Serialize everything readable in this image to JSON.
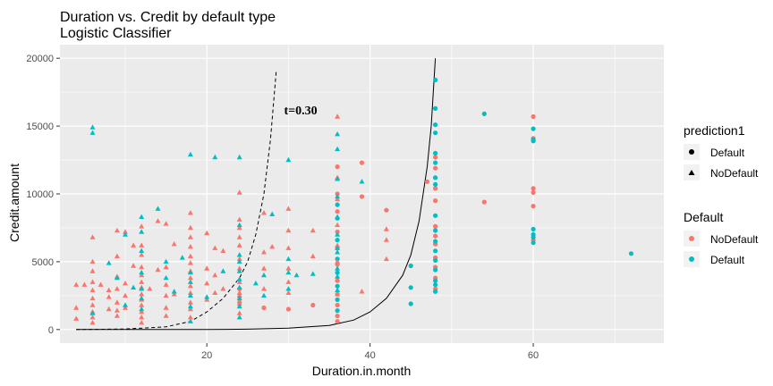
{
  "chart_data": {
    "type": "scatter",
    "title": "Duration vs. Credit by default type",
    "subtitle": "Logistic Classifier",
    "xlabel": "Duration.in.month",
    "ylabel": "Credit.amount",
    "xlim": [
      2,
      76
    ],
    "ylim": [
      -1000,
      21000
    ],
    "x_ticks": [
      20,
      40,
      60
    ],
    "y_ticks": [
      0,
      5000,
      10000,
      15000,
      20000
    ],
    "x_tick_labels": [
      "20",
      "40",
      "60"
    ],
    "y_tick_labels": [
      "0",
      "5000",
      "10000",
      "15000",
      "20000"
    ],
    "grid": true,
    "colors": {
      "NoDefault": "#F8766D",
      "Default": "#00BFC4",
      "panel": "#EBEBEB",
      "grid": "#ffffff"
    },
    "legends": [
      {
        "title": "prediction1",
        "kind": "shape",
        "position": "right",
        "entries": [
          {
            "label": "Default",
            "shape": "circle"
          },
          {
            "label": "NoDefault",
            "shape": "triangle"
          }
        ]
      },
      {
        "title": "Default",
        "kind": "color",
        "position": "right",
        "entries": [
          {
            "label": "NoDefault",
            "color": "#F8766D"
          },
          {
            "label": "Default",
            "color": "#00BFC4"
          }
        ]
      }
    ],
    "annotation": {
      "text": "t=0.30",
      "x": 31.5,
      "y": 16200
    },
    "curves": [
      {
        "name": "boundary-dashed",
        "style": "dashed",
        "points": [
          [
            4,
            0
          ],
          [
            10,
            40
          ],
          [
            15,
            200
          ],
          [
            18,
            600
          ],
          [
            20,
            1300
          ],
          [
            22,
            2300
          ],
          [
            24,
            3800
          ],
          [
            25,
            5000
          ],
          [
            26,
            7000
          ],
          [
            27,
            10000
          ],
          [
            27.8,
            14000
          ],
          [
            28.5,
            19000
          ]
        ]
      },
      {
        "name": "boundary-solid",
        "style": "solid",
        "points": [
          [
            4,
            0
          ],
          [
            20,
            0
          ],
          [
            25,
            30
          ],
          [
            30,
            100
          ],
          [
            35,
            300
          ],
          [
            38,
            700
          ],
          [
            40,
            1300
          ],
          [
            42,
            2300
          ],
          [
            44,
            4000
          ],
          [
            45,
            5500
          ],
          [
            46,
            8000
          ],
          [
            47,
            12000
          ],
          [
            47.5,
            15000
          ],
          [
            48,
            20000
          ]
        ]
      }
    ],
    "series": [
      {
        "name": "prediction Default / Default NoDefault",
        "shape": "circle",
        "color_group": "NoDefault",
        "points": [
          [
            24,
            3000
          ],
          [
            24,
            2400
          ],
          [
            24,
            2000
          ],
          [
            27,
            1600
          ],
          [
            30,
            1500
          ],
          [
            33,
            1800
          ],
          [
            36,
            600
          ],
          [
            36,
            1000
          ],
          [
            36,
            1800
          ],
          [
            36,
            2600
          ],
          [
            36,
            3600
          ],
          [
            36,
            4800
          ],
          [
            36,
            6000
          ],
          [
            36,
            7200
          ],
          [
            36,
            8700
          ],
          [
            36,
            10000
          ],
          [
            36,
            12000
          ],
          [
            39,
            9800
          ],
          [
            39,
            12300
          ],
          [
            42,
            8800
          ],
          [
            47,
            10900
          ],
          [
            48,
            9500
          ],
          [
            48,
            10400
          ],
          [
            48,
            11200
          ],
          [
            48,
            11900
          ],
          [
            48,
            12700
          ],
          [
            48,
            6300
          ],
          [
            48,
            6900
          ],
          [
            48,
            7600
          ],
          [
            48,
            5300
          ],
          [
            48,
            4600
          ],
          [
            48,
            3800
          ],
          [
            48,
            3000
          ],
          [
            54,
            9400
          ],
          [
            60,
            15700
          ],
          [
            60,
            14100
          ],
          [
            60,
            10400
          ],
          [
            60,
            10100
          ],
          [
            60,
            9100
          ],
          [
            60,
            6600
          ]
        ]
      },
      {
        "name": "prediction Default / Default Default",
        "shape": "circle",
        "color_group": "Default",
        "points": [
          [
            36,
            9200
          ],
          [
            36,
            8200
          ],
          [
            36,
            6600
          ],
          [
            36,
            5200
          ],
          [
            36,
            4200
          ],
          [
            36,
            3200
          ],
          [
            36,
            2200
          ],
          [
            36,
            1400
          ],
          [
            45,
            4700
          ],
          [
            45,
            3100
          ],
          [
            45,
            1900
          ],
          [
            48,
            18400
          ],
          [
            48,
            16300
          ],
          [
            48,
            15100
          ],
          [
            48,
            14500
          ],
          [
            48,
            13000
          ],
          [
            48,
            12300
          ],
          [
            48,
            11200
          ],
          [
            48,
            10700
          ],
          [
            48,
            8400
          ],
          [
            48,
            7300
          ],
          [
            48,
            6500
          ],
          [
            48,
            5800
          ],
          [
            48,
            5100
          ],
          [
            48,
            4400
          ],
          [
            48,
            3600
          ],
          [
            48,
            3300
          ],
          [
            48,
            2800
          ],
          [
            54,
            15900
          ],
          [
            60,
            14800
          ],
          [
            60,
            14000
          ],
          [
            60,
            13900
          ],
          [
            60,
            7400
          ],
          [
            60,
            7000
          ],
          [
            60,
            6800
          ],
          [
            60,
            6400
          ],
          [
            72,
            5600
          ]
        ]
      },
      {
        "name": "prediction NoDefault / Default NoDefault",
        "shape": "triangle",
        "color_group": "NoDefault",
        "points": [
          [
            4,
            1600
          ],
          [
            4,
            800
          ],
          [
            4,
            3300
          ],
          [
            5,
            3300
          ],
          [
            6,
            6800
          ],
          [
            6,
            5000
          ],
          [
            6,
            4300
          ],
          [
            6,
            3500
          ],
          [
            6,
            2900
          ],
          [
            6,
            2300
          ],
          [
            6,
            1800
          ],
          [
            6,
            1300
          ],
          [
            6,
            900
          ],
          [
            6,
            500
          ],
          [
            7,
            3300
          ],
          [
            8,
            2900
          ],
          [
            8,
            2400
          ],
          [
            8,
            1500
          ],
          [
            9,
            7300
          ],
          [
            9,
            5400
          ],
          [
            9,
            3900
          ],
          [
            9,
            3000
          ],
          [
            9,
            2000
          ],
          [
            9,
            1400
          ],
          [
            9,
            1000
          ],
          [
            10,
            7200
          ],
          [
            10,
            3400
          ],
          [
            10,
            2500
          ],
          [
            10,
            1600
          ],
          [
            11,
            6200
          ],
          [
            11,
            4700
          ],
          [
            12,
            7600
          ],
          [
            12,
            6200
          ],
          [
            12,
            5500
          ],
          [
            12,
            4600
          ],
          [
            12,
            4000
          ],
          [
            12,
            3500
          ],
          [
            12,
            3100
          ],
          [
            12,
            2600
          ],
          [
            12,
            2200
          ],
          [
            12,
            1800
          ],
          [
            12,
            1300
          ],
          [
            12,
            900
          ],
          [
            12,
            500
          ],
          [
            13,
            3000
          ],
          [
            14,
            8000
          ],
          [
            14,
            4400
          ],
          [
            15,
            7800
          ],
          [
            15,
            4600
          ],
          [
            15,
            3300
          ],
          [
            15,
            2500
          ],
          [
            15,
            1600
          ],
          [
            15,
            1000
          ],
          [
            16,
            2600
          ],
          [
            16,
            6300
          ],
          [
            18,
            8600
          ],
          [
            18,
            7500
          ],
          [
            18,
            6800
          ],
          [
            18,
            6100
          ],
          [
            18,
            5400
          ],
          [
            18,
            4900
          ],
          [
            18,
            4300
          ],
          [
            18,
            3800
          ],
          [
            18,
            3200
          ],
          [
            18,
            2700
          ],
          [
            18,
            2000
          ],
          [
            18,
            1500
          ],
          [
            18,
            900
          ],
          [
            20,
            7100
          ],
          [
            20,
            4500
          ],
          [
            20,
            3400
          ],
          [
            20,
            2200
          ],
          [
            21,
            6000
          ],
          [
            21,
            4000
          ],
          [
            21,
            2700
          ],
          [
            22,
            5800
          ],
          [
            22,
            3000
          ],
          [
            24,
            10100
          ],
          [
            24,
            8100
          ],
          [
            24,
            7500
          ],
          [
            24,
            6800
          ],
          [
            24,
            6200
          ],
          [
            24,
            5200
          ],
          [
            24,
            4500
          ],
          [
            24,
            3500
          ],
          [
            24,
            2700
          ],
          [
            24,
            1900
          ],
          [
            24,
            1200
          ],
          [
            27,
            8600
          ],
          [
            27,
            5700
          ],
          [
            27,
            4500
          ],
          [
            27,
            3000
          ],
          [
            28,
            6100
          ],
          [
            30,
            8900
          ],
          [
            30,
            7300
          ],
          [
            30,
            6000
          ],
          [
            30,
            4500
          ],
          [
            30,
            3500
          ],
          [
            30,
            2700
          ],
          [
            33,
            7300
          ],
          [
            33,
            5400
          ],
          [
            36,
            15700
          ],
          [
            36,
            11200
          ],
          [
            36,
            9600
          ],
          [
            36,
            7700
          ],
          [
            36,
            6200
          ],
          [
            36,
            5000
          ],
          [
            36,
            3700
          ],
          [
            36,
            2600
          ],
          [
            39,
            2800
          ],
          [
            42,
            7400
          ],
          [
            42,
            6600
          ],
          [
            42,
            5200
          ]
        ]
      },
      {
        "name": "prediction NoDefault / Default Default",
        "shape": "triangle",
        "color_group": "Default",
        "points": [
          [
            6,
            14900
          ],
          [
            6,
            14500
          ],
          [
            6,
            1200
          ],
          [
            8,
            4900
          ],
          [
            9,
            3800
          ],
          [
            10,
            7000
          ],
          [
            10,
            1800
          ],
          [
            11,
            3100
          ],
          [
            12,
            8300
          ],
          [
            12,
            7200
          ],
          [
            12,
            5800
          ],
          [
            12,
            4200
          ],
          [
            12,
            3000
          ],
          [
            12,
            2300
          ],
          [
            12,
            1500
          ],
          [
            14,
            8900
          ],
          [
            15,
            5000
          ],
          [
            15,
            3800
          ],
          [
            16,
            2800
          ],
          [
            17,
            5300
          ],
          [
            18,
            12900
          ],
          [
            18,
            4200
          ],
          [
            18,
            3500
          ],
          [
            18,
            2500
          ],
          [
            18,
            1700
          ],
          [
            18,
            600
          ],
          [
            20,
            2400
          ],
          [
            21,
            12700
          ],
          [
            22,
            4300
          ],
          [
            24,
            12700
          ],
          [
            24,
            7700
          ],
          [
            24,
            5500
          ],
          [
            24,
            5000
          ],
          [
            24,
            4300
          ],
          [
            24,
            3700
          ],
          [
            24,
            3100
          ],
          [
            24,
            2300
          ],
          [
            24,
            1700
          ],
          [
            24,
            900
          ],
          [
            26,
            3400
          ],
          [
            27,
            4000
          ],
          [
            27,
            2500
          ],
          [
            28,
            8500
          ],
          [
            30,
            12500
          ],
          [
            30,
            5200
          ],
          [
            30,
            4200
          ],
          [
            30,
            3000
          ],
          [
            31,
            4000
          ],
          [
            33,
            4100
          ],
          [
            36,
            14400
          ],
          [
            36,
            13300
          ],
          [
            36,
            11100
          ],
          [
            36,
            9800
          ],
          [
            36,
            8300
          ],
          [
            36,
            7000
          ],
          [
            36,
            6000
          ],
          [
            36,
            5700
          ],
          [
            36,
            4500
          ],
          [
            36,
            3900
          ],
          [
            36,
            2900
          ],
          [
            39,
            10900
          ]
        ]
      }
    ]
  }
}
